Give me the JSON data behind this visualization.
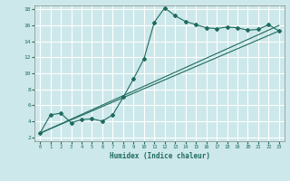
{
  "xlabel": "Humidex (Indice chaleur)",
  "ylabel": "",
  "xlim": [
    -0.5,
    23.5
  ],
  "ylim": [
    1.5,
    18.5
  ],
  "xticks": [
    0,
    1,
    2,
    3,
    4,
    5,
    6,
    7,
    8,
    9,
    10,
    11,
    12,
    13,
    14,
    15,
    16,
    17,
    18,
    19,
    20,
    21,
    22,
    23
  ],
  "yticks": [
    2,
    4,
    6,
    8,
    10,
    12,
    14,
    16,
    18
  ],
  "bg_color": "#cde8ea",
  "grid_color": "#ffffff",
  "line_color": "#1e6b5e",
  "series_main": {
    "x": [
      0,
      1,
      2,
      3,
      4,
      5,
      6,
      7,
      8,
      9,
      10,
      11,
      12,
      13,
      14,
      15,
      16,
      17,
      18,
      19,
      20,
      21,
      22,
      23
    ],
    "y": [
      2.5,
      4.8,
      5.0,
      3.8,
      4.2,
      4.3,
      4.0,
      4.8,
      7.0,
      9.3,
      11.8,
      16.4,
      18.2,
      17.2,
      16.5,
      16.1,
      15.7,
      15.6,
      15.8,
      15.7,
      15.4,
      15.5,
      16.1,
      15.3
    ]
  },
  "series_line1": {
    "x": [
      0,
      23
    ],
    "y": [
      2.5,
      15.3
    ]
  },
  "series_line2": {
    "x": [
      0,
      23
    ],
    "y": [
      2.5,
      16.0
    ]
  }
}
